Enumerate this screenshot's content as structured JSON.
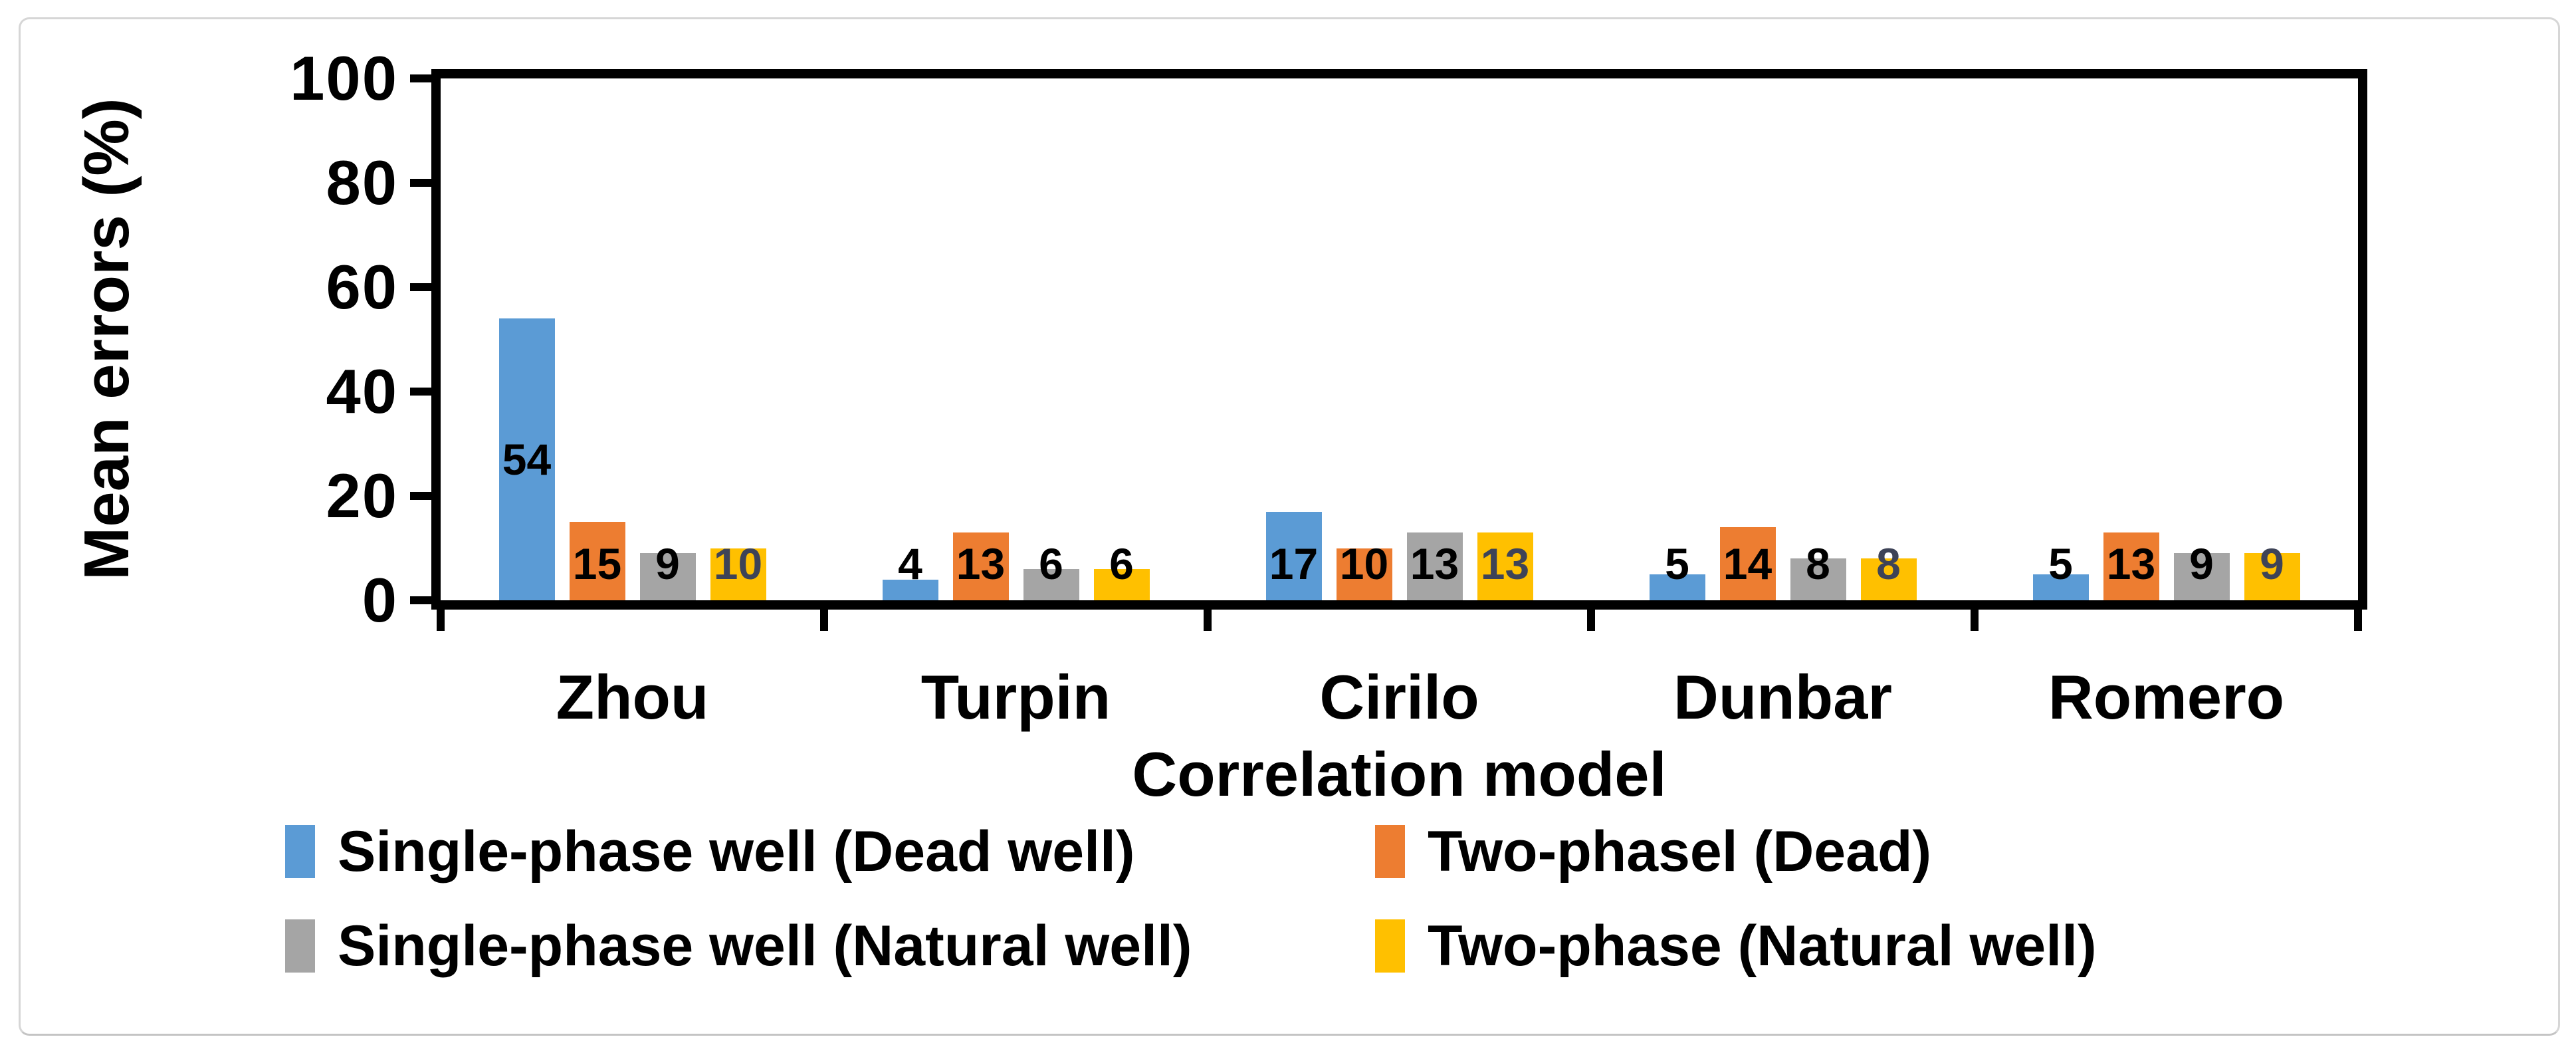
{
  "chart_data": {
    "type": "bar",
    "title": "",
    "xlabel": "Correlation model",
    "ylabel": "Mean errors (%)",
    "ylim": [
      0,
      100
    ],
    "yticks": [
      0,
      20,
      40,
      60,
      80,
      100
    ],
    "grid": false,
    "axis_color": "#000000",
    "legend_position": "bottom",
    "legend_columns": 2,
    "categories": [
      "Zhou",
      "Turpin",
      "Cirilo",
      "Dunbar",
      "Romero"
    ],
    "series": [
      {
        "name": "Single-phase well (Dead well)",
        "color": "#5B9BD5",
        "values": [
          54,
          4,
          17,
          5,
          5
        ]
      },
      {
        "name": "Two-phasel (Dead)",
        "color": "#ED7D31",
        "values": [
          15,
          13,
          10,
          14,
          13
        ]
      },
      {
        "name": "Single-phase well (Natural well)",
        "color": "#A5A5A5",
        "values": [
          9,
          6,
          13,
          8,
          9
        ]
      },
      {
        "name": "Two-phase (Natural well)",
        "color": "#FFC000",
        "values": [
          10,
          6,
          13,
          8,
          9
        ],
        "value_label_colors": [
          "#3e4357",
          "#000000",
          "#3e4357",
          "#3e4357",
          "#3e4357"
        ]
      }
    ],
    "data_labels": true
  }
}
